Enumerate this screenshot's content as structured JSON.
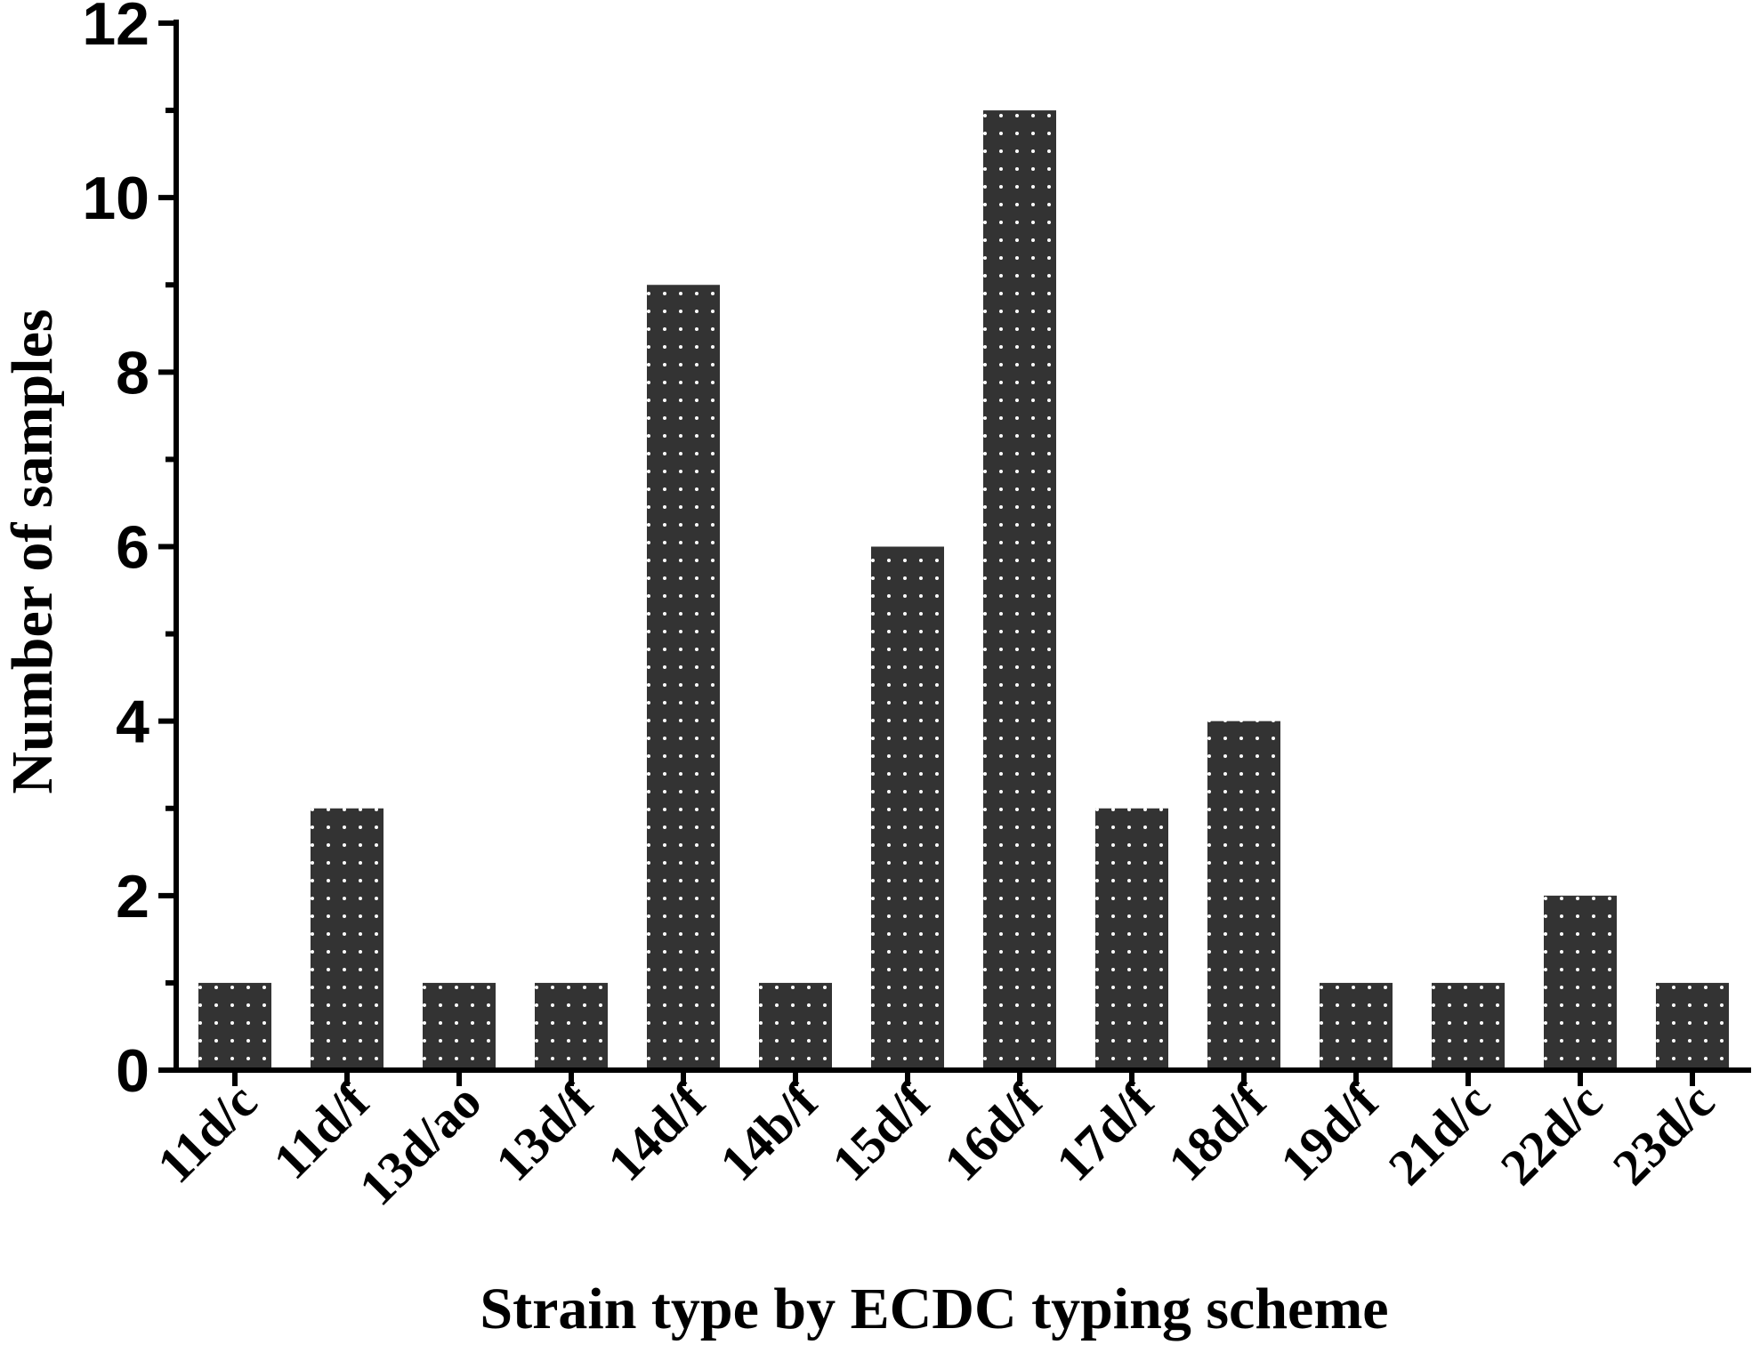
{
  "chart_data": {
    "type": "bar",
    "title": "",
    "xlabel": "Strain type by ECDC typing scheme",
    "ylabel": "Number of samples",
    "categories": [
      "11d/c",
      "11d/f",
      "13d/ao",
      "13d/f",
      "14d/f",
      "14b/f",
      "15d/f",
      "16d/f",
      "17d/f",
      "18d/f",
      "19d/f",
      "21d/c",
      "22d/c",
      "23d/c"
    ],
    "values": [
      1,
      3,
      1,
      1,
      9,
      1,
      6,
      11,
      3,
      4,
      1,
      1,
      2,
      1
    ],
    "ylim": [
      0,
      12
    ],
    "yticks": [
      0,
      2,
      4,
      6,
      8,
      10,
      12
    ],
    "grid": false,
    "bar_color": "#333333",
    "dot_color": "#ffffff",
    "axis_color": "#000000"
  }
}
